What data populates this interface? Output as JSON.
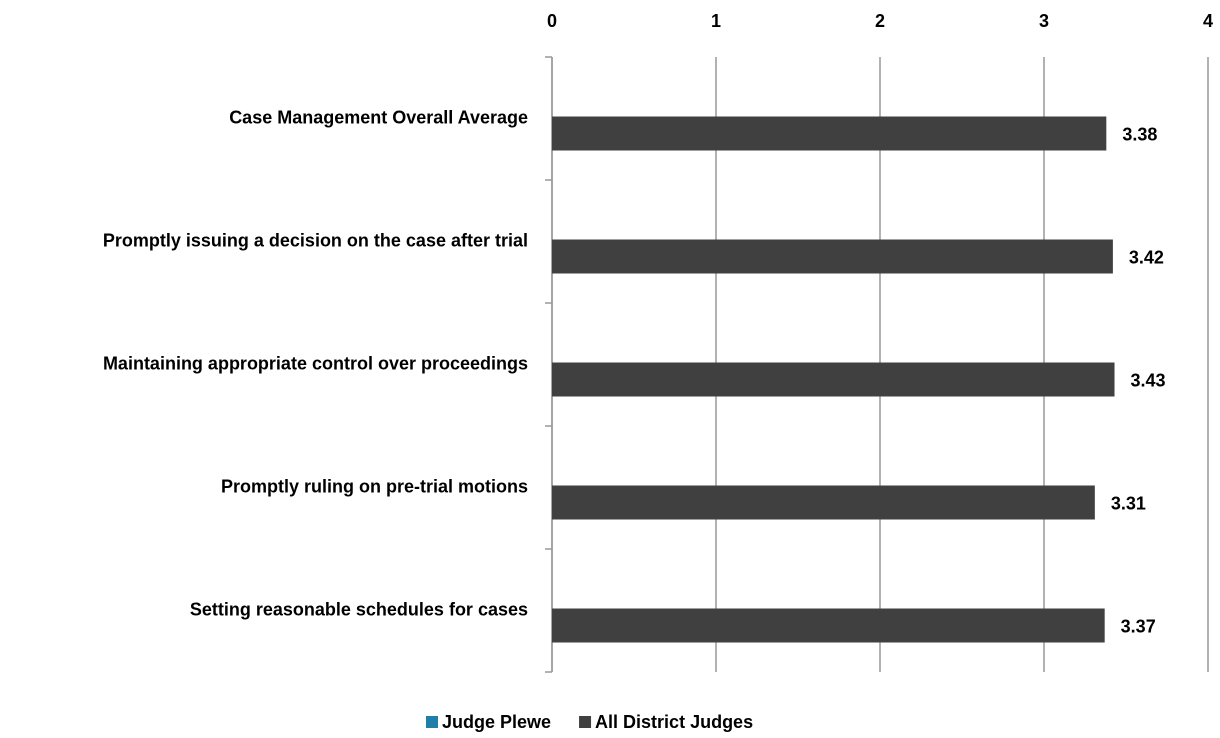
{
  "chart_data": {
    "type": "barh",
    "categories": [
      "Case Management Overall Average",
      "Promptly issuing a decision on the case after trial",
      "Maintaining appropriate control over proceedings",
      "Promptly ruling on pre-trial motions",
      "Setting reasonable schedules for cases"
    ],
    "series": [
      {
        "name": "Judge Plewe",
        "color": "#1f7fa8",
        "values": [
          null,
          null,
          null,
          null,
          null
        ]
      },
      {
        "name": "All District Judges",
        "color": "#404040",
        "values": [
          3.38,
          3.42,
          3.43,
          3.31,
          3.37
        ]
      }
    ],
    "xlim": [
      0,
      4
    ],
    "xticks": [
      0,
      1,
      2,
      3,
      4
    ],
    "grid": true,
    "legend": "bottom"
  }
}
